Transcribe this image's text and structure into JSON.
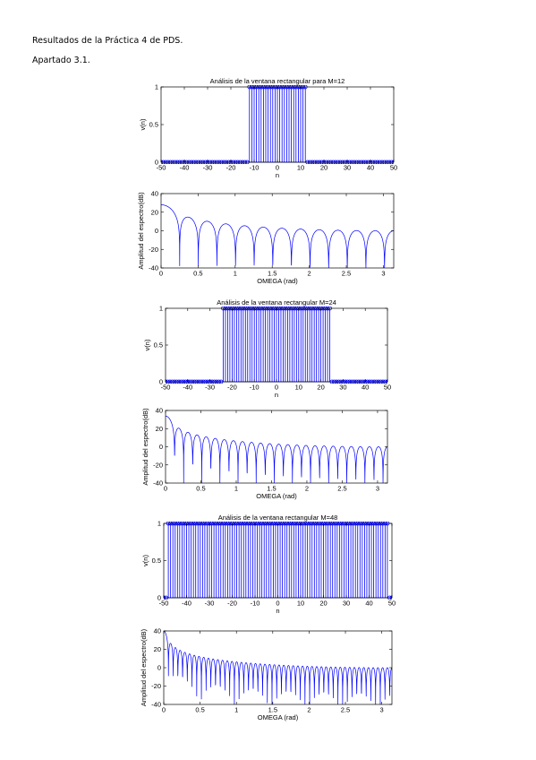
{
  "document": {
    "heading": "Resultados de la Práctica 4 de PDS.",
    "section": "Apartado 3.1."
  },
  "colors": {
    "plot": "#0000ff",
    "axes": "#000000"
  },
  "chart_data": [
    {
      "type": "stem",
      "M": 12,
      "title": "Análisis de la ventana rectangular para M=12",
      "xlabel": "n",
      "ylabel": "v(n)",
      "xlim": [
        -50,
        50
      ],
      "ylim": [
        0,
        1
      ],
      "xticks": [
        -50,
        -40,
        -30,
        -20,
        -10,
        0,
        10,
        20,
        30,
        40,
        50
      ],
      "yticks": [
        0,
        0.5,
        1
      ],
      "x_range": [
        -50,
        50
      ],
      "nonzero_range": [
        -12,
        12
      ],
      "nonzero_value": 1,
      "zero_value": 0
    },
    {
      "type": "line",
      "M": 12,
      "title": "",
      "xlabel": "OMEGA (rad)",
      "ylabel": "Amplitud del espectro(dB)",
      "xlim": [
        0,
        3.14
      ],
      "ylim": [
        -40,
        40
      ],
      "xticks": [
        0,
        0.5,
        1,
        1.5,
        2,
        2.5,
        3
      ],
      "yticks": [
        -40,
        -20,
        0,
        20,
        40
      ],
      "function": "20*log10(|sin(25*w/2)/sin(w/2)|)",
      "peak_db": 27.96
    },
    {
      "type": "stem",
      "M": 24,
      "title": "Análisis de la ventana rectangular M=24",
      "xlabel": "n",
      "ylabel": "v(n)",
      "xlim": [
        -50,
        50
      ],
      "ylim": [
        0,
        1
      ],
      "xticks": [
        -50,
        -40,
        -30,
        -20,
        -10,
        0,
        10,
        20,
        30,
        40,
        50
      ],
      "yticks": [
        0,
        0.5,
        1
      ],
      "x_range": [
        -50,
        50
      ],
      "nonzero_range": [
        -24,
        24
      ],
      "nonzero_value": 1,
      "zero_value": 0
    },
    {
      "type": "line",
      "M": 24,
      "title": "",
      "xlabel": "OMEGA (rad)",
      "ylabel": "Amplitud del espectro(dB)",
      "xlim": [
        0,
        3.14
      ],
      "ylim": [
        -40,
        40
      ],
      "xticks": [
        0,
        0.5,
        1,
        1.5,
        2,
        2.5,
        3
      ],
      "yticks": [
        -40,
        -20,
        0,
        20,
        40
      ],
      "function": "20*log10(|sin(49*w/2)/sin(w/2)|)",
      "peak_db": 33.8
    },
    {
      "type": "stem",
      "M": 48,
      "title": "Análisis de la ventana rectangular M=48",
      "xlabel": "n",
      "ylabel": "v(n)",
      "xlim": [
        -50,
        50
      ],
      "ylim": [
        0,
        1
      ],
      "xticks": [
        -50,
        -40,
        -30,
        -20,
        -10,
        0,
        10,
        20,
        30,
        40,
        50
      ],
      "yticks": [
        0,
        0.5,
        1
      ],
      "x_range": [
        -50,
        50
      ],
      "nonzero_range": [
        -48,
        48
      ],
      "nonzero_value": 1,
      "zero_value": 0
    },
    {
      "type": "line",
      "M": 48,
      "title": "",
      "xlabel": "OMEGA (rad)",
      "ylabel": "Amplitud del espectro(dB)",
      "xlim": [
        0,
        3.14
      ],
      "ylim": [
        -40,
        40
      ],
      "xticks": [
        0,
        0.5,
        1,
        1.5,
        2,
        2.5,
        3
      ],
      "yticks": [
        -40,
        -20,
        0,
        20,
        40
      ],
      "function": "20*log10(|sin(97*w/2)/sin(w/2)|)",
      "peak_db": 39.74
    }
  ]
}
